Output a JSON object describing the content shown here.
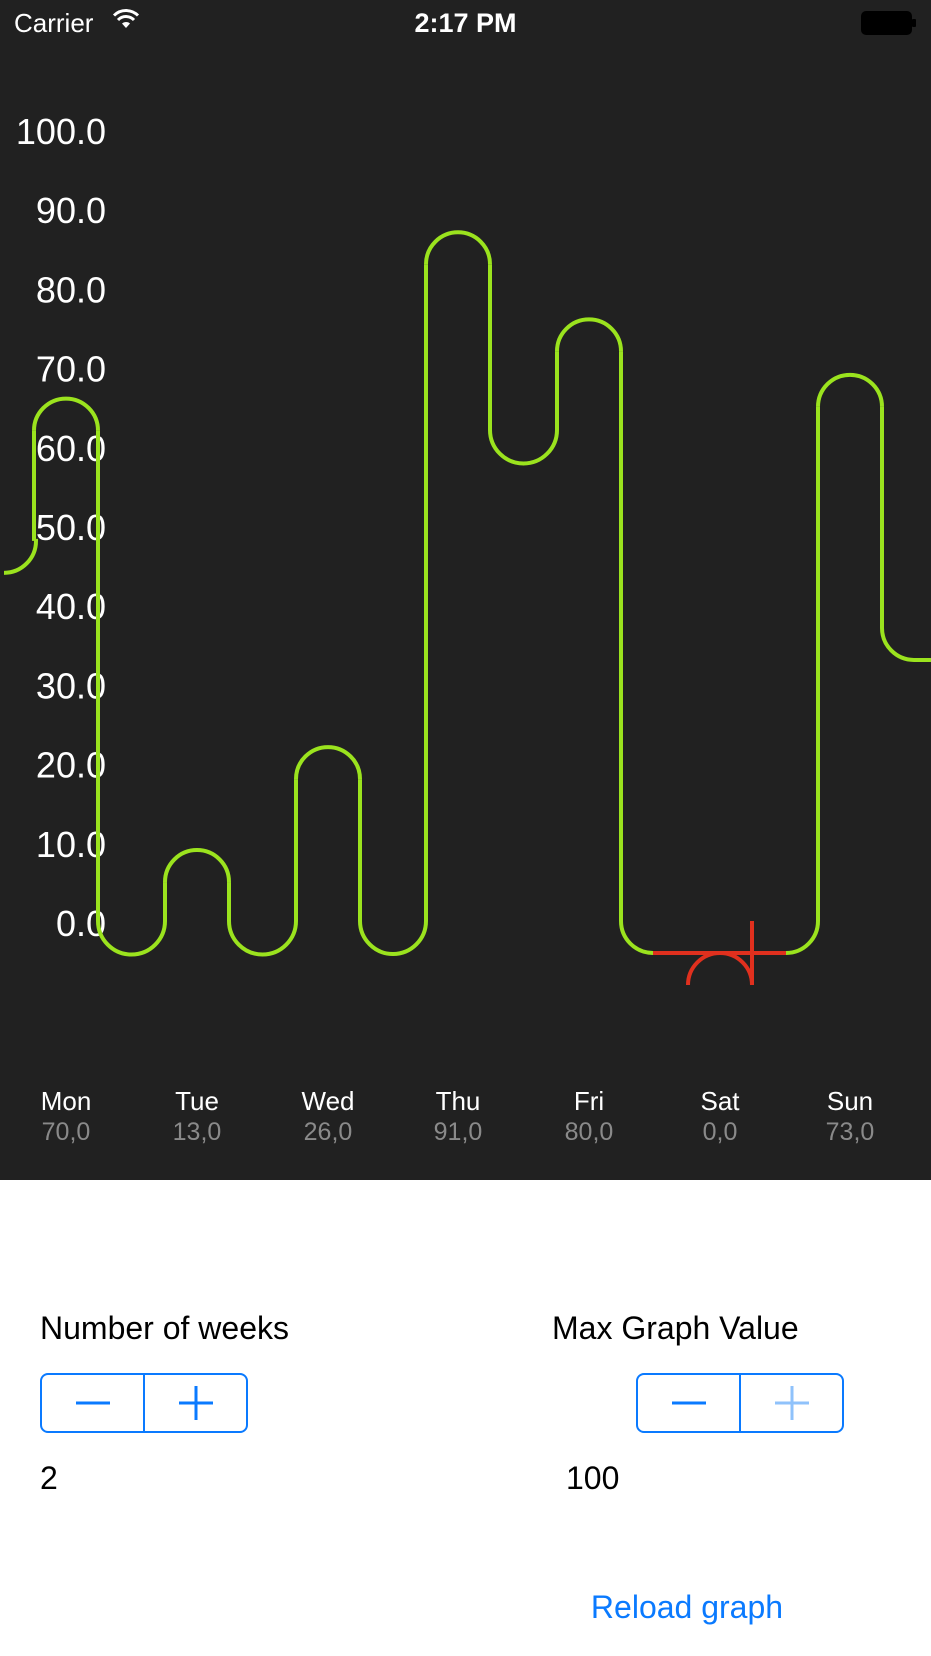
{
  "status_bar": {
    "carrier": "Carrier",
    "time": "2:17 PM"
  },
  "chart_data": {
    "type": "line",
    "y_tick_labels": [
      "100.0",
      "90.0",
      "80.0",
      "70.0",
      "60.0",
      "50.0",
      "40.0",
      "30.0",
      "20.0",
      "10.0",
      "0.0"
    ],
    "ylim": [
      0,
      100
    ],
    "goal": 10,
    "categories": [
      "Mon",
      "Tue",
      "Wed",
      "Thu",
      "Fri",
      "Sat",
      "Sun"
    ],
    "value_labels": [
      "70,0",
      "13,0",
      "26,0",
      "91,0",
      "80,0",
      "0,0",
      "73,0"
    ],
    "values": [
      70,
      13,
      26,
      91,
      80,
      0,
      73
    ],
    "connector_values": [
      0,
      0,
      0,
      62,
      0,
      0
    ],
    "lead_in_value": 48,
    "lead_out_value": 37,
    "colors": {
      "above_goal": "#9be31e",
      "below_goal": "#e0301e",
      "axis_text": "#ffffff",
      "value_text": "#8a8a8a"
    }
  },
  "controls": {
    "weeks": {
      "label": "Number of weeks",
      "value": "2",
      "minus_icon": "minus-icon",
      "plus_icon": "plus-icon"
    },
    "max_value": {
      "label": "Max Graph Value",
      "value": "100",
      "minus_icon": "minus-icon",
      "plus_icon": "plus-icon",
      "plus_disabled": true
    }
  },
  "reload_label": "Reload graph",
  "colors": {
    "accent": "#0a7aff",
    "panel_bg": "#212121",
    "disabled_accent": "#8fc2fb"
  }
}
